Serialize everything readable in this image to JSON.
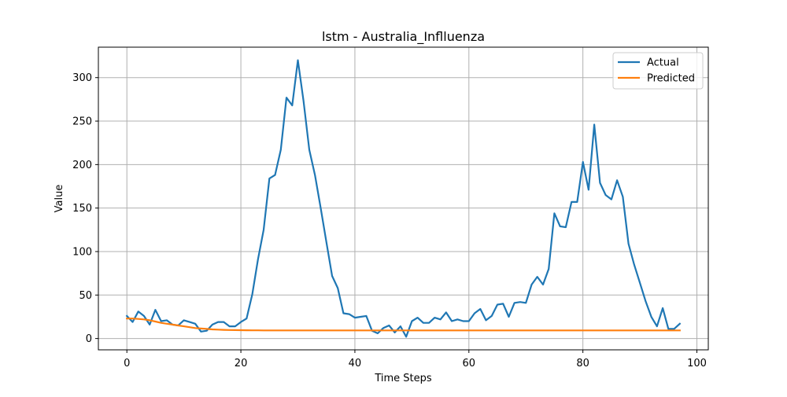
{
  "chart_data": {
    "type": "line",
    "title": "lstm - Australia_Inflluenza",
    "xlabel": "Time Steps",
    "ylabel": "Value",
    "xlim": [
      -5,
      102
    ],
    "ylim": [
      -13,
      335
    ],
    "xticks": [
      0,
      20,
      40,
      60,
      80,
      100
    ],
    "yticks": [
      0,
      50,
      100,
      150,
      200,
      250,
      300
    ],
    "grid": true,
    "legend_position": "top-right",
    "series": [
      {
        "name": "Actual",
        "color": "#1f77b4",
        "x": [
          0,
          1,
          2,
          3,
          4,
          5,
          6,
          7,
          8,
          9,
          10,
          11,
          12,
          13,
          14,
          15,
          16,
          17,
          18,
          19,
          20,
          21,
          22,
          23,
          24,
          25,
          26,
          27,
          28,
          29,
          30,
          31,
          32,
          33,
          34,
          35,
          36,
          37,
          38,
          39,
          40,
          41,
          42,
          43,
          44,
          45,
          46,
          47,
          48,
          49,
          50,
          51,
          52,
          53,
          54,
          55,
          56,
          57,
          58,
          59,
          60,
          61,
          62,
          63,
          64,
          65,
          66,
          67,
          68,
          69,
          70,
          71,
          72,
          73,
          74,
          75,
          76,
          77,
          78,
          79,
          80,
          81,
          82,
          83,
          84,
          85,
          86,
          87,
          88,
          89,
          90,
          91,
          92,
          93,
          94,
          95,
          96,
          97
        ],
        "values": [
          26,
          19,
          31,
          26,
          16,
          33,
          20,
          21,
          16,
          15,
          21,
          19,
          17,
          8,
          9,
          16,
          19,
          19,
          14,
          14,
          19,
          23,
          51,
          91,
          125,
          184,
          188,
          217,
          277,
          268,
          320,
          273,
          217,
          188,
          150,
          111,
          72,
          58,
          29,
          28,
          24,
          25,
          26,
          9,
          6,
          12,
          15,
          7,
          14,
          2,
          20,
          24,
          18,
          18,
          24,
          22,
          30,
          20,
          22,
          20,
          20,
          29,
          34,
          21,
          26,
          39,
          40,
          25,
          41,
          42,
          41,
          62,
          71,
          62,
          80,
          144,
          129,
          128,
          157,
          157,
          203,
          171,
          246,
          179,
          165,
          160,
          182,
          163,
          109,
          85,
          64,
          43,
          25,
          14,
          35,
          11,
          11,
          17
        ]
      },
      {
        "name": "Predicted",
        "color": "#ff7f0e",
        "x": [
          0,
          1,
          2,
          3,
          4,
          5,
          6,
          7,
          8,
          9,
          10,
          11,
          12,
          13,
          14,
          15,
          16,
          17,
          18,
          19,
          20,
          21,
          22,
          23,
          24,
          25,
          26,
          27,
          28,
          29,
          30,
          31,
          32,
          33,
          34,
          35,
          36,
          37,
          38,
          39,
          40,
          41,
          42,
          43,
          44,
          45,
          46,
          47,
          48,
          49,
          50,
          51,
          52,
          53,
          54,
          55,
          56,
          57,
          58,
          59,
          60,
          61,
          62,
          63,
          64,
          65,
          66,
          67,
          68,
          69,
          70,
          71,
          72,
          73,
          74,
          75,
          76,
          77,
          78,
          79,
          80,
          81,
          82,
          83,
          84,
          85,
          86,
          87,
          88,
          89,
          90,
          91,
          92,
          93,
          94,
          95,
          96,
          97
        ],
        "values": [
          23,
          23,
          22.5,
          22,
          21,
          19.5,
          18,
          17,
          16,
          15,
          14,
          13,
          12,
          11.5,
          11,
          10.5,
          10.2,
          10,
          9.8,
          9.7,
          9.6,
          9.5,
          9.4,
          9.4,
          9.3,
          9.3,
          9.3,
          9.3,
          9.3,
          9.3,
          9.3,
          9.3,
          9.3,
          9.3,
          9.3,
          9.3,
          9.3,
          9.3,
          9.3,
          9.3,
          9.3,
          9.3,
          9.3,
          9.3,
          9.3,
          9.3,
          9.3,
          9.3,
          9.3,
          9.3,
          9.3,
          9.3,
          9.3,
          9.3,
          9.3,
          9.3,
          9.3,
          9.3,
          9.3,
          9.3,
          9.3,
          9.3,
          9.3,
          9.3,
          9.3,
          9.3,
          9.3,
          9.3,
          9.3,
          9.3,
          9.3,
          9.3,
          9.3,
          9.3,
          9.3,
          9.3,
          9.3,
          9.3,
          9.3,
          9.3,
          9.3,
          9.3,
          9.3,
          9.3,
          9.3,
          9.3,
          9.3,
          9.3,
          9.3,
          9.3,
          9.3,
          9.3,
          9.3,
          9.3,
          9.3,
          9.3,
          9.3,
          9.3
        ]
      }
    ]
  }
}
